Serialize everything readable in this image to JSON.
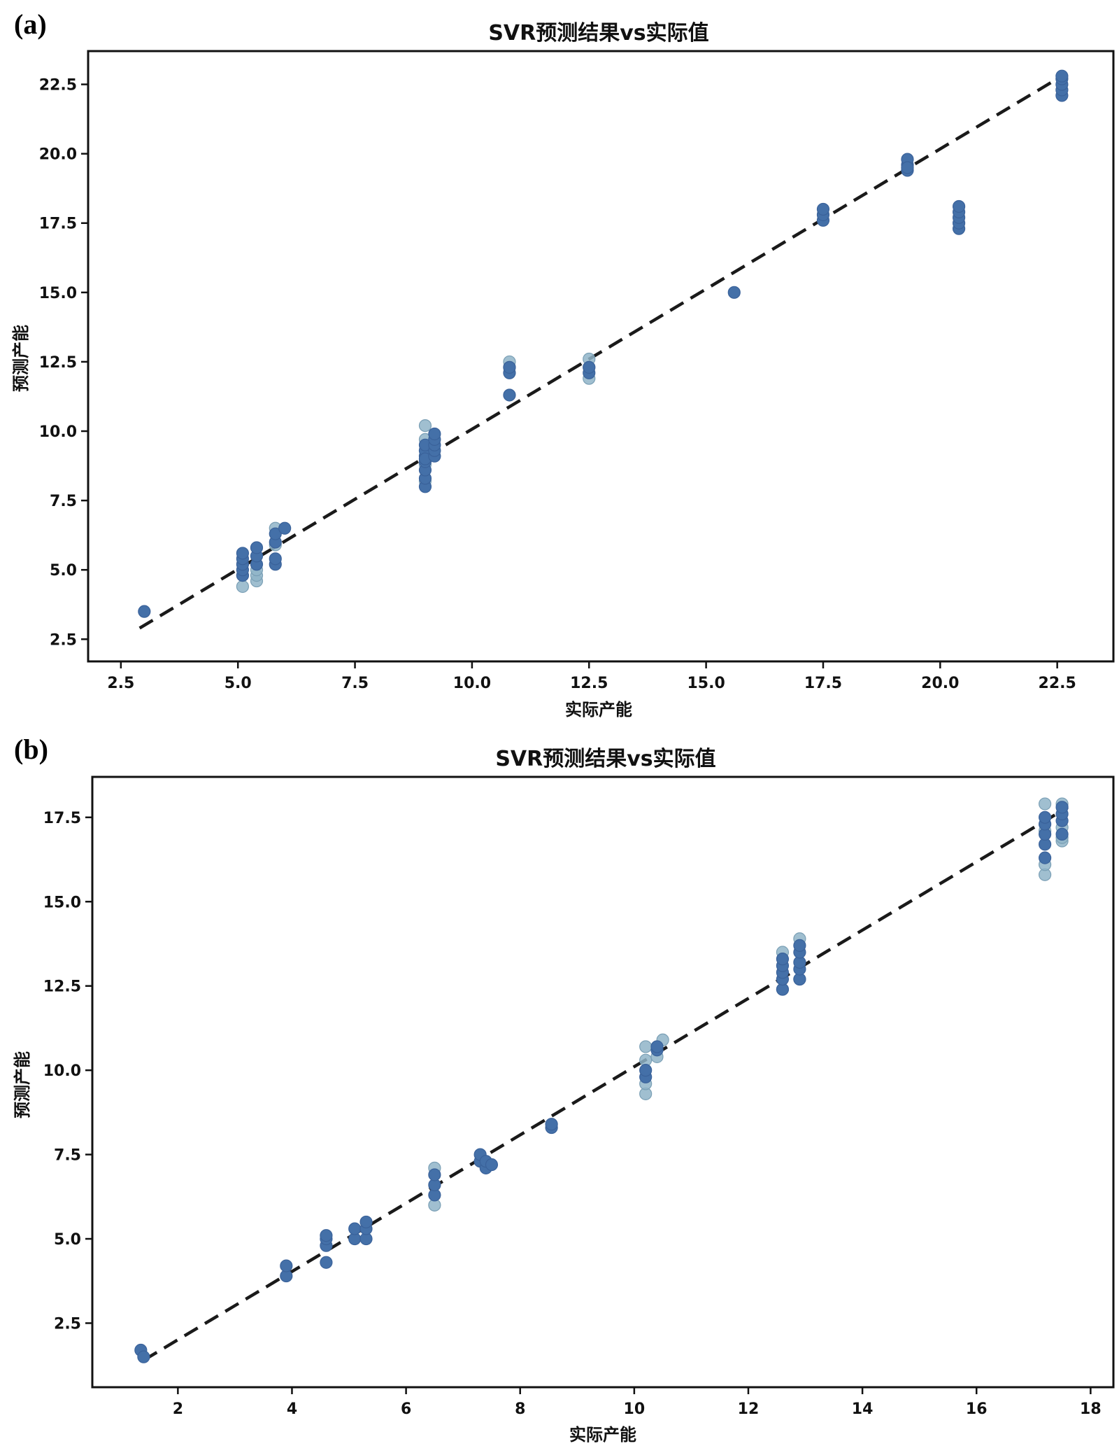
{
  "chart_data": [
    {
      "panel": "(a)",
      "type": "scatter",
      "title": "SVR预测结果vs实际值",
      "xlabel": "实际产能",
      "ylabel": "预测产能",
      "xlim": [
        1.8,
        23.7
      ],
      "ylim": [
        1.7,
        23.7
      ],
      "xticks": [
        2.5,
        5.0,
        7.5,
        10.0,
        12.5,
        15.0,
        17.5,
        20.0,
        22.5
      ],
      "xtick_labels": [
        "2.5",
        "5.0",
        "7.5",
        "10.0",
        "12.5",
        "15.0",
        "17.5",
        "20.0",
        "22.5"
      ],
      "yticks": [
        2.5,
        5.0,
        7.5,
        10.0,
        12.5,
        15.0,
        17.5,
        20.0,
        22.5
      ],
      "ytick_labels": [
        "2.5",
        "5.0",
        "7.5",
        "10.0",
        "12.5",
        "15.0",
        "17.5",
        "20.0",
        "22.5"
      ],
      "reference_line": {
        "from": [
          2.9,
          2.9
        ],
        "to": [
          22.6,
          22.8
        ],
        "style": "dashed",
        "color": "#1a1a1a"
      },
      "series": [
        {
          "name": "light",
          "color": "#8fb4c8",
          "x": [
            5.1,
            5.1,
            5.4,
            5.4,
            5.4,
            5.8,
            5.8,
            9.0,
            9.0,
            9.0,
            9.0,
            9.0,
            10.8,
            10.8,
            12.5,
            12.5,
            12.5
          ],
          "y": [
            4.4,
            4.8,
            4.6,
            4.8,
            5.0,
            6.5,
            5.9,
            10.2,
            9.7,
            9.3,
            8.8,
            8.2,
            12.5,
            12.3,
            12.6,
            12.3,
            11.9
          ]
        },
        {
          "name": "dark",
          "color": "#4470a8",
          "x": [
            3.0,
            5.1,
            5.1,
            5.1,
            5.1,
            5.1,
            5.4,
            5.4,
            5.4,
            5.8,
            5.8,
            5.8,
            5.8,
            6.0,
            9.0,
            9.0,
            9.0,
            9.0,
            9.0,
            9.0,
            9.0,
            9.0,
            9.2,
            9.2,
            9.2,
            9.2,
            9.2,
            10.8,
            10.8,
            10.8,
            12.5,
            12.5,
            15.6,
            17.5,
            17.5,
            17.5,
            19.3,
            19.3,
            19.3,
            19.3,
            20.4,
            20.4,
            20.4,
            20.4,
            20.4,
            22.6,
            22.6,
            22.6,
            22.6,
            22.6
          ],
          "y": [
            3.5,
            4.8,
            5.0,
            5.2,
            5.4,
            5.6,
            5.2,
            5.5,
            5.8,
            5.2,
            5.4,
            6.0,
            6.3,
            6.5,
            8.0,
            8.3,
            8.6,
            8.9,
            9.1,
            9.3,
            9.5,
            9.0,
            9.1,
            9.3,
            9.5,
            9.7,
            9.9,
            11.3,
            12.1,
            12.3,
            12.1,
            12.3,
            15.0,
            17.6,
            17.8,
            18.0,
            19.4,
            19.6,
            19.8,
            19.5,
            17.3,
            17.5,
            17.7,
            17.9,
            18.1,
            22.1,
            22.3,
            22.5,
            22.7,
            22.8
          ]
        }
      ]
    },
    {
      "panel": "(b)",
      "type": "scatter",
      "title": "SVR预测结果vs实际值",
      "xlabel": "实际产能",
      "ylabel": "预测产能",
      "xlim": [
        0.5,
        18.4
      ],
      "ylim": [
        0.6,
        18.7
      ],
      "xticks": [
        2,
        4,
        6,
        8,
        10,
        12,
        14,
        16,
        18
      ],
      "xtick_labels": [
        "2",
        "4",
        "6",
        "8",
        "10",
        "12",
        "14",
        "16",
        "18"
      ],
      "yticks": [
        2.5,
        5.0,
        7.5,
        10.0,
        12.5,
        15.0,
        17.5
      ],
      "ytick_labels": [
        "2.5",
        "5.0",
        "7.5",
        "10.0",
        "12.5",
        "15.0",
        "17.5"
      ],
      "reference_line": {
        "from": [
          1.4,
          1.4
        ],
        "to": [
          17.6,
          17.8
        ],
        "style": "dashed",
        "color": "#1a1a1a"
      },
      "series": [
        {
          "name": "light",
          "color": "#8fb4c8",
          "x": [
            6.5,
            6.5,
            10.2,
            10.2,
            10.2,
            10.2,
            10.5,
            10.4,
            12.6,
            12.6,
            12.9,
            12.9,
            17.2,
            17.2,
            17.2,
            17.2,
            17.5,
            17.5,
            17.5,
            17.5
          ],
          "y": [
            6.0,
            7.1,
            9.3,
            9.6,
            10.3,
            10.7,
            10.9,
            10.4,
            13.5,
            12.4,
            13.9,
            12.7,
            15.8,
            16.1,
            17.1,
            17.9,
            16.8,
            17.2,
            17.9,
            16.9
          ],
          "style": "open"
        },
        {
          "name": "dark",
          "color": "#4470a8",
          "x": [
            1.35,
            1.4,
            3.9,
            3.9,
            4.6,
            4.6,
            4.6,
            4.6,
            5.1,
            5.1,
            5.3,
            5.3,
            5.3,
            6.5,
            6.5,
            6.5,
            7.3,
            7.3,
            7.4,
            7.4,
            7.5,
            8.55,
            8.55,
            10.2,
            10.2,
            10.4,
            10.4,
            12.6,
            12.6,
            12.6,
            12.6,
            12.6,
            12.9,
            12.9,
            12.9,
            12.9,
            12.9,
            17.2,
            17.2,
            17.2,
            17.2,
            17.2,
            17.5,
            17.5,
            17.5,
            17.5
          ],
          "y": [
            1.7,
            1.5,
            3.9,
            4.2,
            4.3,
            4.8,
            5.0,
            5.1,
            5.0,
            5.3,
            5.0,
            5.3,
            5.5,
            6.3,
            6.6,
            6.9,
            7.3,
            7.5,
            7.1,
            7.3,
            7.2,
            8.3,
            8.4,
            9.8,
            10.0,
            10.6,
            10.7,
            12.4,
            12.7,
            12.9,
            13.1,
            13.3,
            12.7,
            13.0,
            13.2,
            13.5,
            13.7,
            16.3,
            16.7,
            17.0,
            17.3,
            17.5,
            17.0,
            17.4,
            17.6,
            17.8
          ]
        }
      ]
    }
  ]
}
